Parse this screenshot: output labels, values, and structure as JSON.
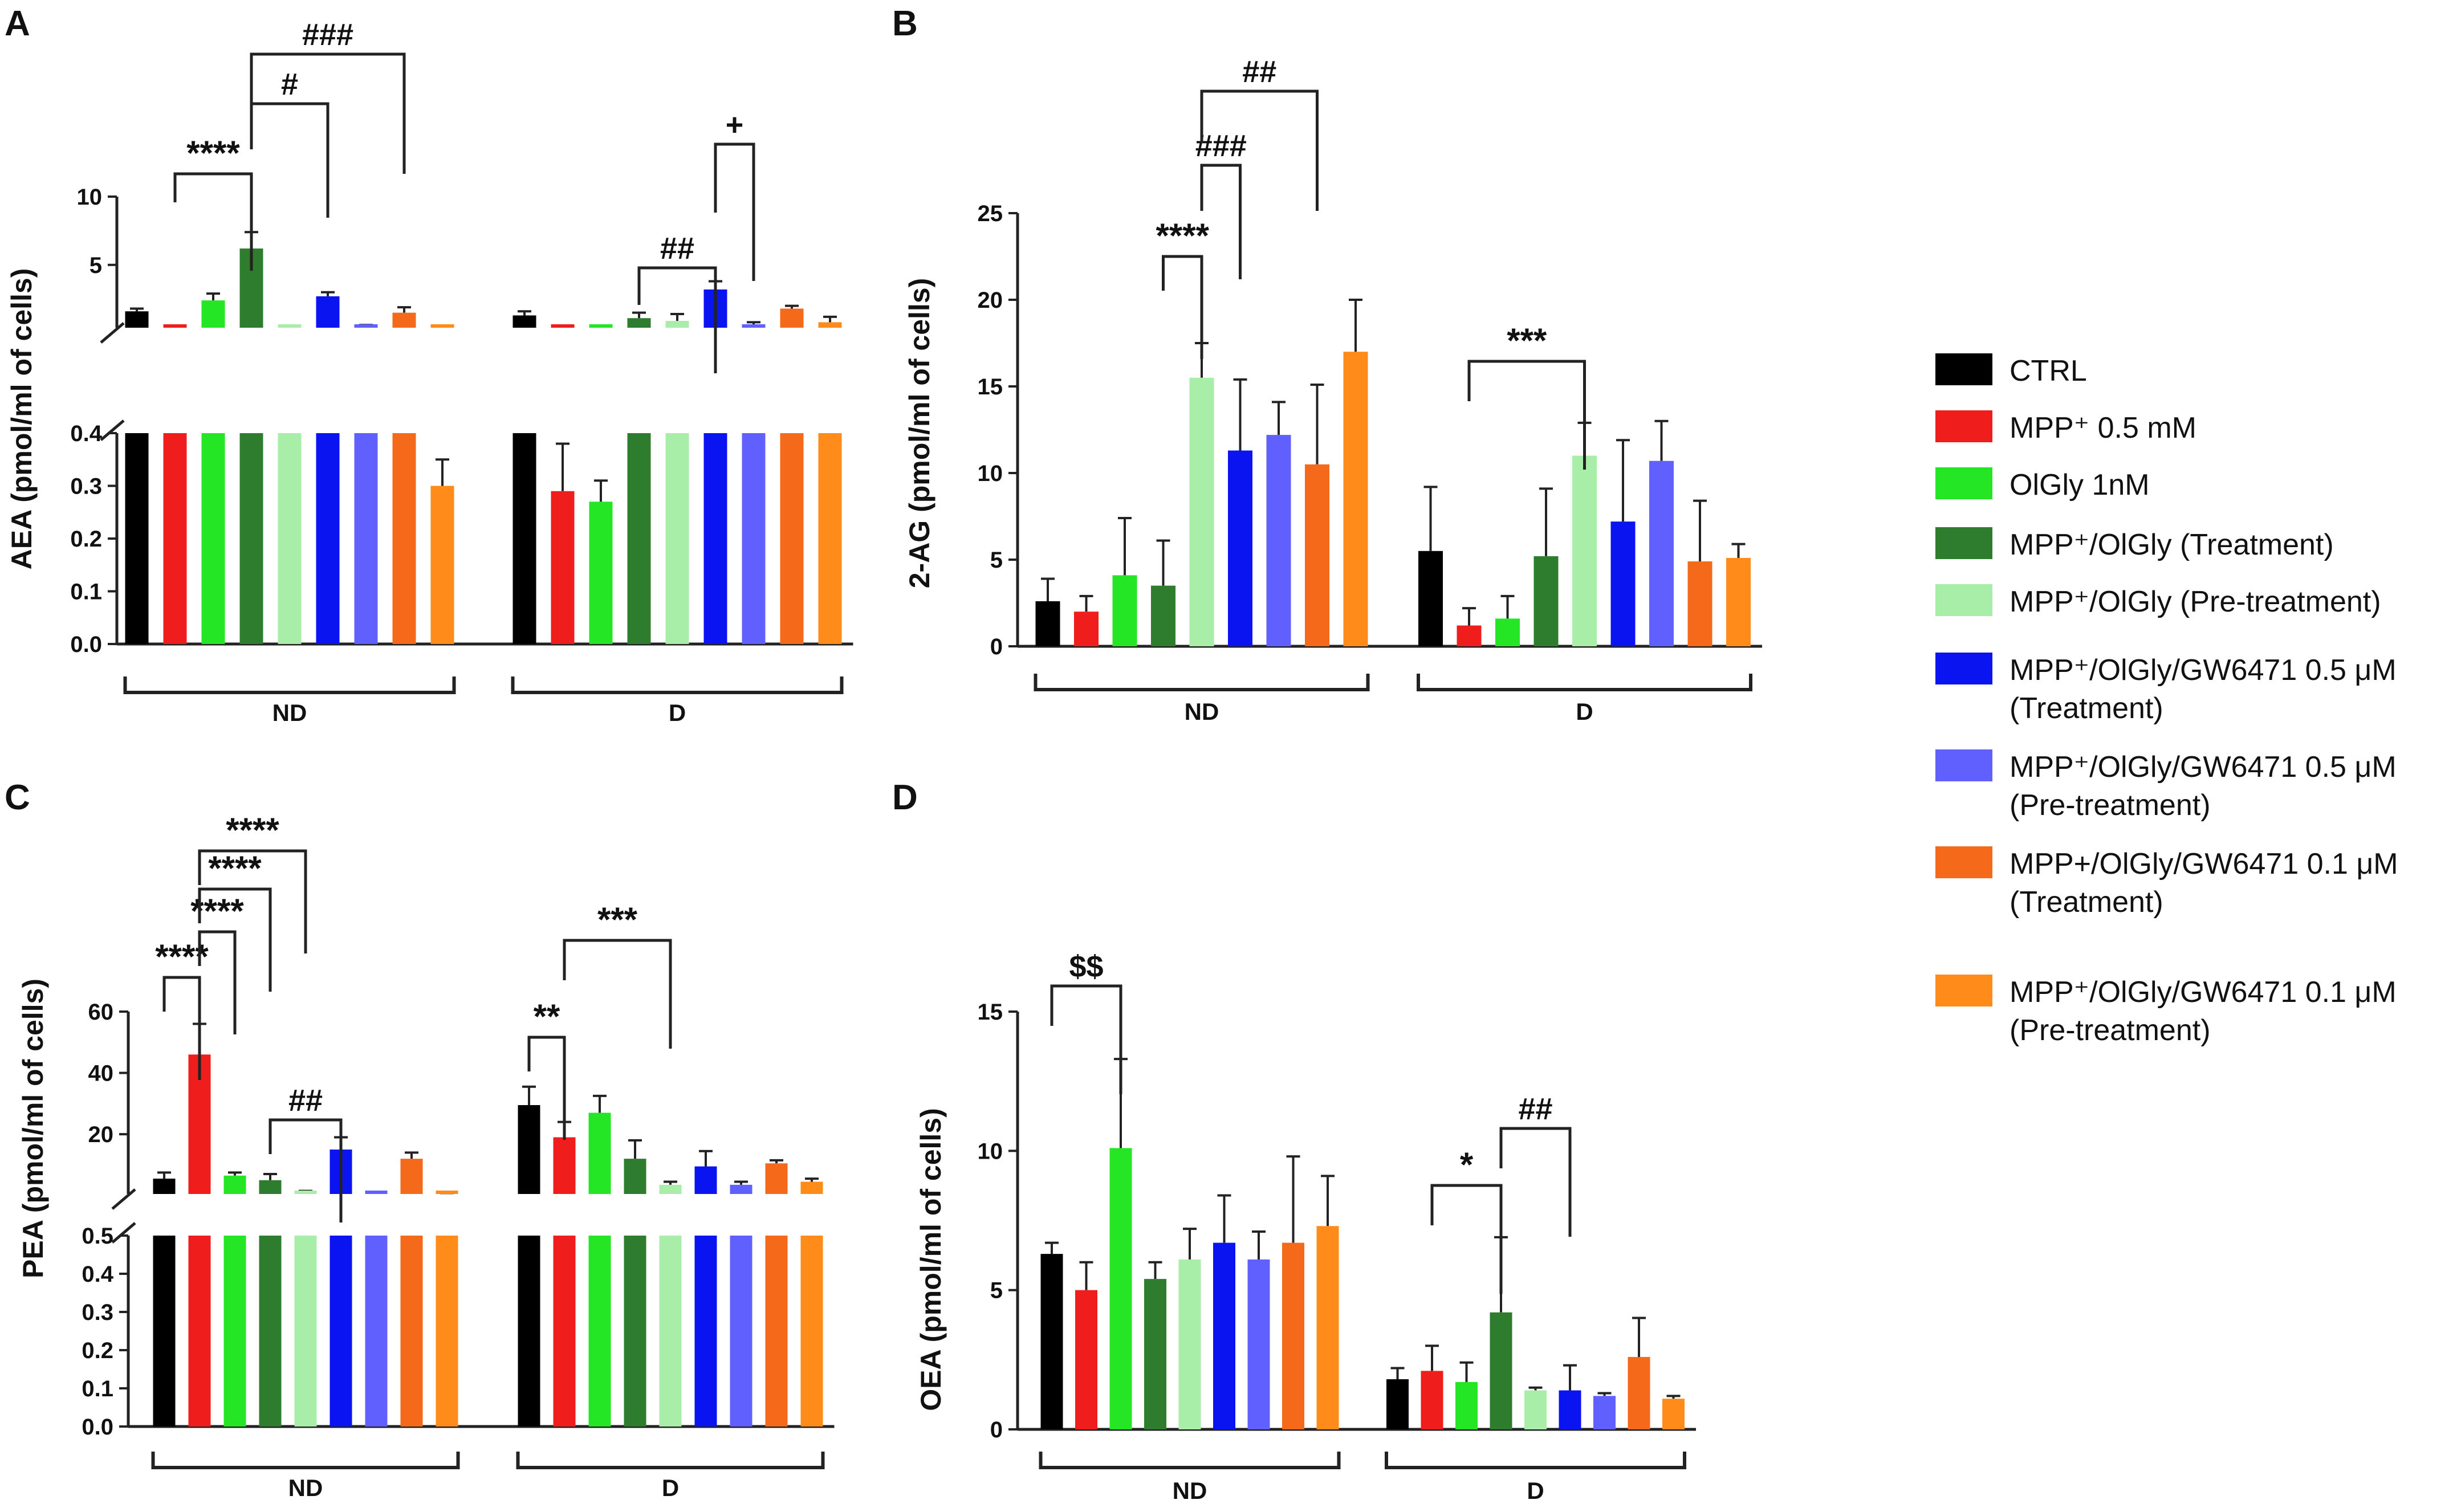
{
  "legend": {
    "items": [
      {
        "label": "CTRL",
        "color": "#000000"
      },
      {
        "label": "MPP⁺ 0.5 mM",
        "color": "#f01d1d"
      },
      {
        "label": "OlGly 1nM",
        "color": "#25e625"
      },
      {
        "label": "MPP⁺/OlGly (Treatment)",
        "color": "#2e7d2e"
      },
      {
        "label": "MPP⁺/OlGly (Pre-treatment)",
        "color": "#a8eda8"
      },
      {
        "label": "MPP⁺/OlGly/GW6471 0.5 μM",
        "label2": "(Treatment)",
        "color": "#0a14f0"
      },
      {
        "label": "MPP⁺/OlGly/GW6471 0.5 μM",
        "label2": "(Pre-treatment)",
        "color": "#6060ff"
      },
      {
        "label": "MPP+/OlGly/GW6471 0.1 μM",
        "label2": "(Treatment)",
        "color": "#f56a1a"
      },
      {
        "label": "MPP⁺/OlGly/GW6471 0.1 μM",
        "label2": "(Pre-treatment)",
        "color": "#ff8c1a"
      }
    ]
  },
  "chart_data": [
    {
      "panel": "A",
      "type": "bar",
      "broken_axis": true,
      "ylabel": "AEA (pmol/ml of cells)",
      "groups": [
        "ND",
        "D"
      ],
      "series": [
        "CTRL",
        "MPP⁺ 0.5 mM",
        "OlGly 1nM",
        "MPP⁺/OlGly (Treatment)",
        "MPP⁺/OlGly (Pre-treatment)",
        "MPP⁺/OlGly/GW6471 0.5 μM (Treatment)",
        "MPP⁺/OlGly/GW6471 0.5 μM (Pre-treatment)",
        "MPP+/OlGly/GW6471 0.1 μM (Treatment)",
        "MPP⁺/OlGly/GW6471 0.1 μM (Pre-treatment)"
      ],
      "values": {
        "ND": [
          1.6,
          0.4,
          2.4,
          6.2,
          0.4,
          2.7,
          0.5,
          1.5,
          0.3
        ],
        "D": [
          1.3,
          0.29,
          0.27,
          1.1,
          0.9,
          3.2,
          0.6,
          1.8,
          0.8
        ]
      },
      "errors": {
        "ND": [
          0.2,
          0.1,
          0.5,
          1.2,
          0.05,
          0.3,
          0.1,
          0.4,
          0.05
        ],
        "D": [
          0.3,
          0.09,
          0.04,
          0.4,
          0.5,
          0.6,
          0.2,
          0.2,
          0.4
        ]
      },
      "y_upper": {
        "range": [
          0.4,
          10
        ],
        "ticks": [
          "5",
          "10"
        ]
      },
      "y_lower": {
        "range": [
          0,
          0.4
        ],
        "ticks": [
          "0.0",
          "0.1",
          "0.2",
          "0.3",
          "0.4"
        ]
      },
      "significance": [
        {
          "from": "ND:1",
          "to": "ND:3",
          "label": "****"
        },
        {
          "from": "ND:3",
          "to": "ND:5",
          "label": "#"
        },
        {
          "from": "ND:3",
          "to": "ND:7",
          "label": "###"
        },
        {
          "from": "D:3",
          "to": "D:5",
          "label": "##"
        },
        {
          "from": "D:5",
          "to": "D:6",
          "label": "+"
        }
      ]
    },
    {
      "panel": "B",
      "type": "bar",
      "ylabel": "2-AG (pmol/ml of cells)",
      "groups": [
        "ND",
        "D"
      ],
      "values": {
        "ND": [
          2.6,
          2.0,
          4.1,
          3.5,
          15.5,
          11.3,
          12.2,
          10.5,
          17.0
        ],
        "D": [
          5.5,
          1.2,
          1.6,
          5.2,
          11.0,
          7.2,
          10.7,
          4.9,
          5.1
        ]
      },
      "errors": {
        "ND": [
          1.3,
          0.9,
          3.3,
          2.6,
          2.0,
          4.1,
          1.9,
          4.6,
          3.0
        ],
        "D": [
          3.7,
          1.0,
          1.3,
          3.9,
          1.9,
          4.7,
          2.3,
          3.5,
          0.8
        ]
      },
      "y": {
        "range": [
          0,
          25
        ],
        "ticks": [
          "0",
          "5",
          "10",
          "15",
          "20",
          "25"
        ]
      },
      "significance": [
        {
          "from": "ND:3",
          "to": "ND:4",
          "label": "****"
        },
        {
          "from": "ND:4",
          "to": "ND:5",
          "label": "###"
        },
        {
          "from": "ND:4",
          "to": "ND:7",
          "label": "##"
        },
        {
          "from": "D:1",
          "to": "D:4",
          "label": "***"
        }
      ]
    },
    {
      "panel": "C",
      "type": "bar",
      "broken_axis": true,
      "ylabel": "PEA (pmol/ml of cells)",
      "groups": [
        "ND",
        "D"
      ],
      "values": {
        "ND": [
          5.5,
          46,
          6.5,
          5.0,
          1.2,
          15,
          0.8,
          12,
          0.6
        ],
        "D": [
          29.5,
          19,
          27,
          12,
          3.5,
          9.5,
          3.5,
          10.5,
          4.5
        ]
      },
      "errors": {
        "ND": [
          2,
          10,
          1,
          2,
          0.3,
          4,
          0.2,
          2,
          0.2
        ],
        "D": [
          6,
          5,
          5.5,
          6,
          1,
          5,
          1,
          1,
          1
        ]
      },
      "y_upper": {
        "range": [
          0.5,
          60
        ],
        "ticks": [
          "20",
          "40",
          "60"
        ]
      },
      "y_lower": {
        "range": [
          0,
          0.5
        ],
        "ticks": [
          "0.0",
          "0.1",
          "0.2",
          "0.3",
          "0.4",
          "0.5"
        ]
      },
      "significance": [
        {
          "from": "ND:0",
          "to": "ND:1",
          "label": "****"
        },
        {
          "from": "ND:1",
          "to": "ND:2",
          "label": "****"
        },
        {
          "from": "ND:1",
          "to": "ND:3",
          "label": "****"
        },
        {
          "from": "ND:1",
          "to": "ND:4",
          "label": "****"
        },
        {
          "from": "ND:3",
          "to": "ND:5",
          "label": "##"
        },
        {
          "from": "D:0",
          "to": "D:1",
          "label": "**"
        },
        {
          "from": "D:1",
          "to": "D:4",
          "label": "***"
        }
      ]
    },
    {
      "panel": "D",
      "type": "bar",
      "ylabel": "OEA (pmol/ml of cells)",
      "groups": [
        "ND",
        "D"
      ],
      "values": {
        "ND": [
          6.3,
          5.0,
          10.1,
          5.4,
          6.1,
          6.7,
          6.1,
          6.7,
          7.3
        ],
        "D": [
          1.8,
          2.1,
          1.7,
          4.2,
          1.4,
          1.4,
          1.2,
          2.6,
          1.1
        ]
      },
      "errors": {
        "ND": [
          0.4,
          1.0,
          3.2,
          0.6,
          1.1,
          1.7,
          1.0,
          3.1,
          1.8
        ],
        "D": [
          0.4,
          0.9,
          0.7,
          2.7,
          0.1,
          0.9,
          0.1,
          1.4,
          0.1
        ]
      },
      "y": {
        "range": [
          0,
          15
        ],
        "ticks": [
          "0",
          "5",
          "10",
          "15"
        ]
      },
      "significance": [
        {
          "from": "ND:0",
          "to": "ND:2",
          "label": "$$"
        },
        {
          "from": "D:1",
          "to": "D:3",
          "label": "*"
        },
        {
          "from": "D:3",
          "to": "D:5",
          "label": "##"
        }
      ]
    }
  ]
}
